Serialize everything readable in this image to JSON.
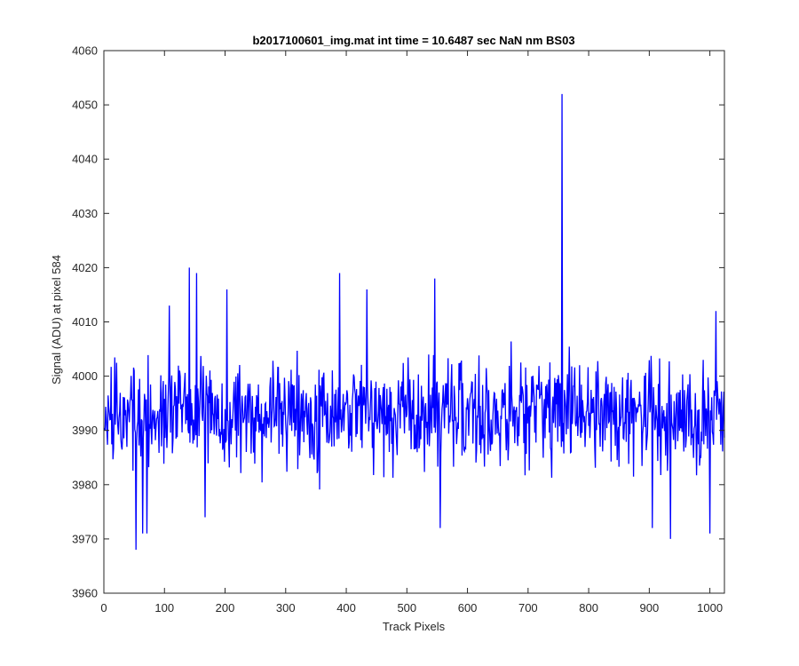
{
  "chart_data": {
    "type": "line",
    "title": "b2017100601_img.mat int time = 10.6487 sec  NaN nm BS03",
    "xlabel": "Track Pixels",
    "ylabel": "Signal (ADU) at pixel 584",
    "xlim": [
      0,
      1024
    ],
    "ylim": [
      3960,
      4060
    ],
    "xticks": [
      0,
      100,
      200,
      300,
      400,
      500,
      600,
      700,
      800,
      900,
      1000
    ],
    "yticks": [
      3960,
      3970,
      3980,
      3990,
      4000,
      4010,
      4020,
      4030,
      4040,
      4050,
      4060
    ],
    "grid": false,
    "legend": "none",
    "series": [
      {
        "color": "#0000ff",
        "x_start": 1,
        "x_step": 1,
        "mean": 3993,
        "noise_amplitude": 16,
        "seed": 584,
        "n_points": 1024,
        "peaks": [
          {
            "x": 756,
            "y": 4052
          },
          {
            "x": 141,
            "y": 4020
          },
          {
            "x": 153,
            "y": 4019
          },
          {
            "x": 389,
            "y": 4019
          },
          {
            "x": 546,
            "y": 4018
          },
          {
            "x": 203,
            "y": 4016
          },
          {
            "x": 434,
            "y": 4016
          },
          {
            "x": 1010,
            "y": 4012
          },
          {
            "x": 108,
            "y": 4013
          },
          {
            "x": 53,
            "y": 3968
          },
          {
            "x": 64,
            "y": 3971
          },
          {
            "x": 71,
            "y": 3971
          },
          {
            "x": 555,
            "y": 3972
          },
          {
            "x": 935,
            "y": 3970
          },
          {
            "x": 1000,
            "y": 3971
          },
          {
            "x": 167,
            "y": 3974
          },
          {
            "x": 905,
            "y": 3972
          }
        ]
      }
    ]
  }
}
